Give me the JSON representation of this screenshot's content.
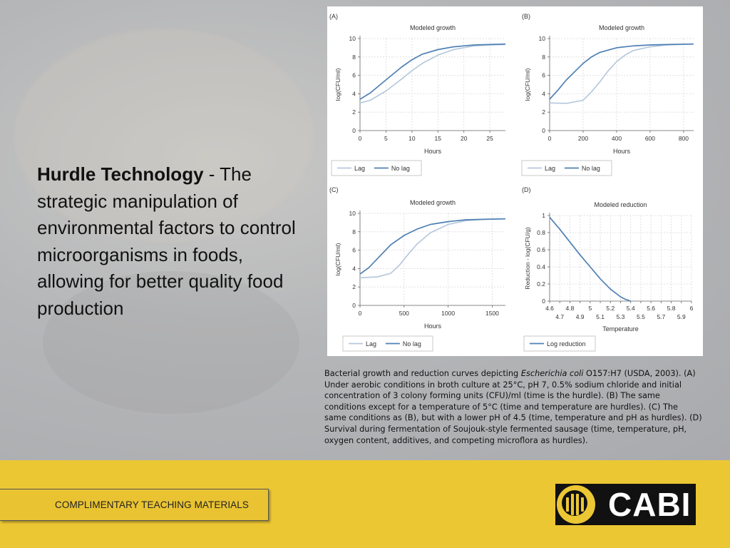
{
  "slide": {
    "heading_bold": "Hurdle Technology",
    "heading_rest": " - The strategic manipulation of environmental factors to control microorganisms in foods, allowing for better quality food production",
    "caption_pre": "Bacterial growth and reduction curves depicting ",
    "caption_italic": "Escherichia coli",
    "caption_post": " O157:H7 (USDA, 2003). (A) Under aerobic conditions in broth culture at 25°C, pH 7, 0.5% sodium chloride and initial concentration of 3 colony forming units (CFU)/ml (time is the hurdle). (B) The same conditions except for a temperature of 5°C (time and temperature are hurdles). (C) The same conditions as (B), but with a lower pH of 4.5 (time, temperature and pH as hurdles). (D) Survival during fermentation of Soujouk-style fermented sausage (time, temperature, pH, oxygen content, additives, and competing microflora as hurdles).",
    "footer_label": "COMPLIMENTARY TEACHING MATERIALS",
    "logo_text": "CABI"
  },
  "colors": {
    "lag": "#b7c9dd",
    "no_lag": "#4f80b5",
    "footer": "#ecc734",
    "logo_bg": "#111111"
  },
  "chart_data": [
    {
      "panel": "(A)",
      "type": "line",
      "title": "Modeled growth",
      "xlabel": "Hours",
      "ylabel": "log(CFU/ml)",
      "xlim": [
        0,
        28
      ],
      "ylim": [
        0,
        10
      ],
      "xticks": [
        0,
        5,
        10,
        15,
        20,
        25
      ],
      "yticks": [
        0,
        2,
        4,
        6,
        8,
        10
      ],
      "grid": true,
      "legend_position": "bottom",
      "series": [
        {
          "name": "Lag",
          "x": [
            0,
            2,
            5,
            8,
            10,
            12,
            15,
            18,
            20,
            22,
            25,
            28
          ],
          "y": [
            3.0,
            3.3,
            4.3,
            5.6,
            6.5,
            7.3,
            8.2,
            8.8,
            9.0,
            9.2,
            9.3,
            9.35
          ]
        },
        {
          "name": "No lag",
          "x": [
            0,
            2,
            5,
            8,
            10,
            12,
            15,
            18,
            20,
            22,
            25,
            28
          ],
          "y": [
            3.4,
            4.1,
            5.5,
            6.9,
            7.7,
            8.3,
            8.8,
            9.1,
            9.2,
            9.3,
            9.35,
            9.4
          ]
        }
      ]
    },
    {
      "panel": "(B)",
      "type": "line",
      "title": "Modeled growth",
      "xlabel": "Hours",
      "ylabel": "log(CFU/ml)",
      "xlim": [
        0,
        860
      ],
      "ylim": [
        0,
        10
      ],
      "xticks": [
        0,
        200,
        400,
        600,
        800
      ],
      "yticks": [
        0,
        2,
        4,
        6,
        8,
        10
      ],
      "grid": true,
      "legend_position": "bottom",
      "series": [
        {
          "name": "Lag",
          "x": [
            0,
            100,
            200,
            250,
            300,
            350,
            400,
            450,
            500,
            600,
            700,
            860
          ],
          "y": [
            3.0,
            2.95,
            3.3,
            4.2,
            5.3,
            6.5,
            7.5,
            8.2,
            8.7,
            9.1,
            9.3,
            9.4
          ]
        },
        {
          "name": "No lag",
          "x": [
            0,
            50,
            100,
            200,
            250,
            300,
            400,
            500,
            600,
            700,
            860
          ],
          "y": [
            3.4,
            4.4,
            5.5,
            7.3,
            8.0,
            8.5,
            9.0,
            9.2,
            9.3,
            9.35,
            9.4
          ]
        }
      ]
    },
    {
      "panel": "(C)",
      "type": "line",
      "title": "Modeled growth",
      "xlabel": "Hours",
      "ylabel": "log(CFU/ml)",
      "xlim": [
        0,
        1650
      ],
      "ylim": [
        0,
        10
      ],
      "xticks": [
        0,
        500,
        1000,
        1500
      ],
      "yticks": [
        0,
        2,
        4,
        6,
        8,
        10
      ],
      "grid": true,
      "legend_position": "bottom",
      "series": [
        {
          "name": "Lag",
          "x": [
            0,
            200,
            350,
            450,
            550,
            650,
            800,
            1000,
            1200,
            1400,
            1650
          ],
          "y": [
            3.0,
            3.1,
            3.5,
            4.4,
            5.6,
            6.7,
            7.9,
            8.8,
            9.2,
            9.35,
            9.4
          ]
        },
        {
          "name": "No lag",
          "x": [
            0,
            100,
            200,
            350,
            500,
            650,
            800,
            1000,
            1200,
            1400,
            1650
          ],
          "y": [
            3.4,
            4.1,
            5.1,
            6.6,
            7.6,
            8.3,
            8.8,
            9.1,
            9.3,
            9.35,
            9.4
          ]
        }
      ]
    },
    {
      "panel": "(D)",
      "type": "line",
      "title": "Modeled reduction",
      "xlabel": "Temperature",
      "ylabel": "Reduction - log(CFU/g)",
      "xlim": [
        4.6,
        6.0
      ],
      "ylim": [
        0,
        1
      ],
      "xticks": [
        4.6,
        4.7,
        4.8,
        4.9,
        5.0,
        5.1,
        5.2,
        5.3,
        5.4,
        5.5,
        5.6,
        5.7,
        5.8,
        5.9,
        6.0
      ],
      "xtick_labels": [
        "4.6",
        "4.7",
        "4.8",
        "4.9",
        "5",
        "5.1",
        "5.2",
        "5.3",
        "5.4",
        "5.5",
        "5.6",
        "5.7",
        "5.8",
        "5.9",
        "6"
      ],
      "yticks": [
        0,
        0.2,
        0.4,
        0.6,
        0.8,
        1
      ],
      "ytick_labels": [
        "0",
        "0.2",
        "0.4",
        "0.6",
        "0.8",
        "1"
      ],
      "grid": true,
      "legend_position": "bottom",
      "series": [
        {
          "name": "Log reduction",
          "x": [
            4.6,
            4.7,
            4.8,
            4.9,
            5.0,
            5.1,
            5.2,
            5.3,
            5.35,
            5.4
          ],
          "y": [
            0.98,
            0.84,
            0.69,
            0.54,
            0.4,
            0.26,
            0.14,
            0.05,
            0.02,
            0.0
          ]
        }
      ]
    }
  ]
}
